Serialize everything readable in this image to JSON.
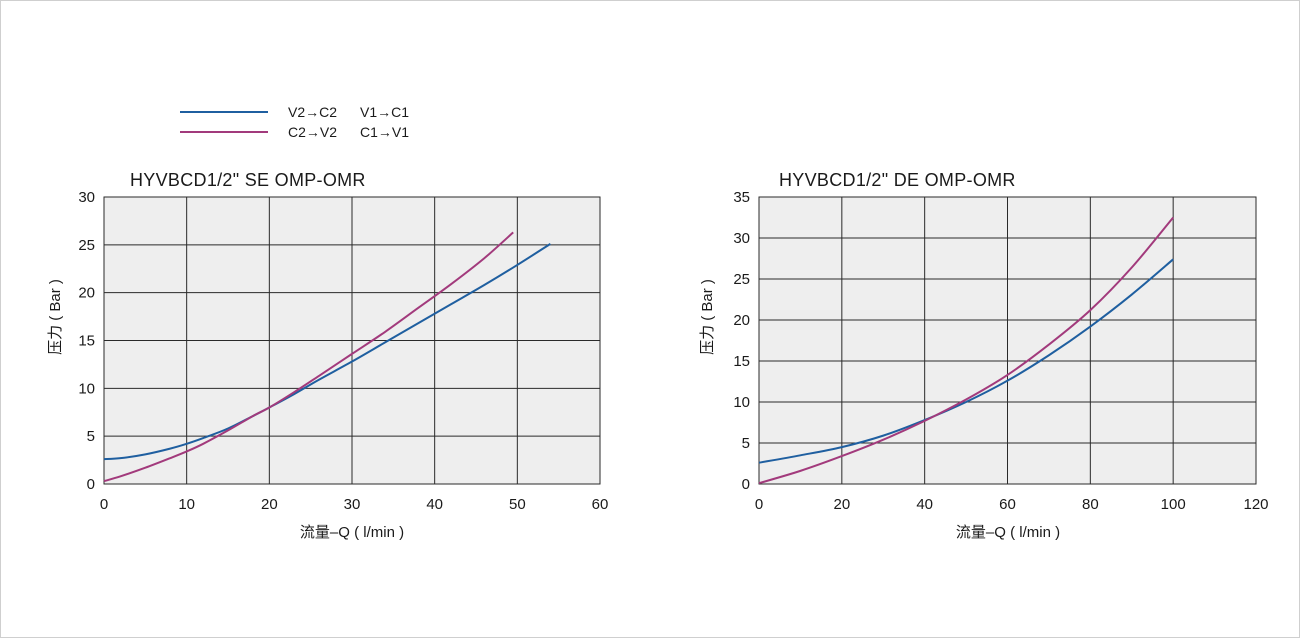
{
  "legend": [
    {
      "label_a": "V2→C2",
      "label_b": "V1→C1",
      "color": "#1f5fa0"
    },
    {
      "label_a": "C2→V2",
      "label_b": "C1→V1",
      "color": "#a23a7c"
    }
  ],
  "chart_data": [
    {
      "type": "line",
      "title": "HYVBCD1/2\" SE OMP-OMR",
      "xlabel": "流量–Q ( l/min )",
      "ylabel": "压力 ( Bar )",
      "xlim": [
        0,
        60
      ],
      "ylim": [
        0,
        30
      ],
      "xticks": [
        0,
        10,
        20,
        30,
        40,
        50,
        60
      ],
      "yticks": [
        0,
        5,
        10,
        15,
        20,
        25,
        30
      ],
      "grid": true,
      "series": [
        {
          "name": "V2→C2  V1→C1",
          "color": "#1f5fa0",
          "x": [
            0,
            2,
            5,
            8,
            10,
            12,
            15,
            18,
            20,
            23,
            26,
            30,
            34,
            38,
            42,
            46,
            50,
            54
          ],
          "y": [
            2.6,
            2.7,
            3.1,
            3.7,
            4.2,
            4.8,
            5.8,
            7.1,
            8.0,
            9.4,
            10.9,
            12.8,
            14.8,
            16.8,
            18.8,
            20.8,
            22.9,
            25.1
          ]
        },
        {
          "name": "C2→V2  C1→V1",
          "color": "#a23a7c",
          "x": [
            0,
            2,
            5,
            8,
            10,
            12,
            15,
            18,
            20,
            23,
            26,
            30,
            34,
            38,
            42,
            46,
            49.5
          ],
          "y": [
            0.3,
            0.8,
            1.7,
            2.7,
            3.4,
            4.2,
            5.6,
            7.1,
            8.0,
            9.6,
            11.3,
            13.6,
            15.9,
            18.4,
            20.9,
            23.6,
            26.3
          ]
        }
      ]
    },
    {
      "type": "line",
      "title": "HYVBCD1/2\" DE OMP-OMR",
      "xlabel": "流量–Q ( l/min )",
      "ylabel": "压力 ( Bar )",
      "xlim": [
        0,
        120
      ],
      "ylim": [
        0,
        35
      ],
      "xticks": [
        0,
        20,
        40,
        60,
        80,
        100,
        120
      ],
      "yticks": [
        0,
        5,
        10,
        15,
        20,
        25,
        30,
        35
      ],
      "grid": true,
      "series": [
        {
          "name": "V2→C2  V1→C1",
          "color": "#1f5fa0",
          "x": [
            0,
            10,
            20,
            30,
            40,
            50,
            60,
            70,
            80,
            90,
            100
          ],
          "y": [
            2.6,
            3.5,
            4.5,
            5.9,
            7.8,
            10.0,
            12.6,
            15.7,
            19.2,
            23.1,
            27.4
          ]
        },
        {
          "name": "C2→V2  C1→V1",
          "color": "#a23a7c",
          "x": [
            0,
            10,
            20,
            30,
            40,
            50,
            60,
            70,
            80,
            90,
            100
          ],
          "y": [
            0.1,
            1.6,
            3.4,
            5.4,
            7.7,
            10.3,
            13.3,
            17.0,
            21.2,
            26.4,
            32.5
          ]
        }
      ]
    }
  ]
}
